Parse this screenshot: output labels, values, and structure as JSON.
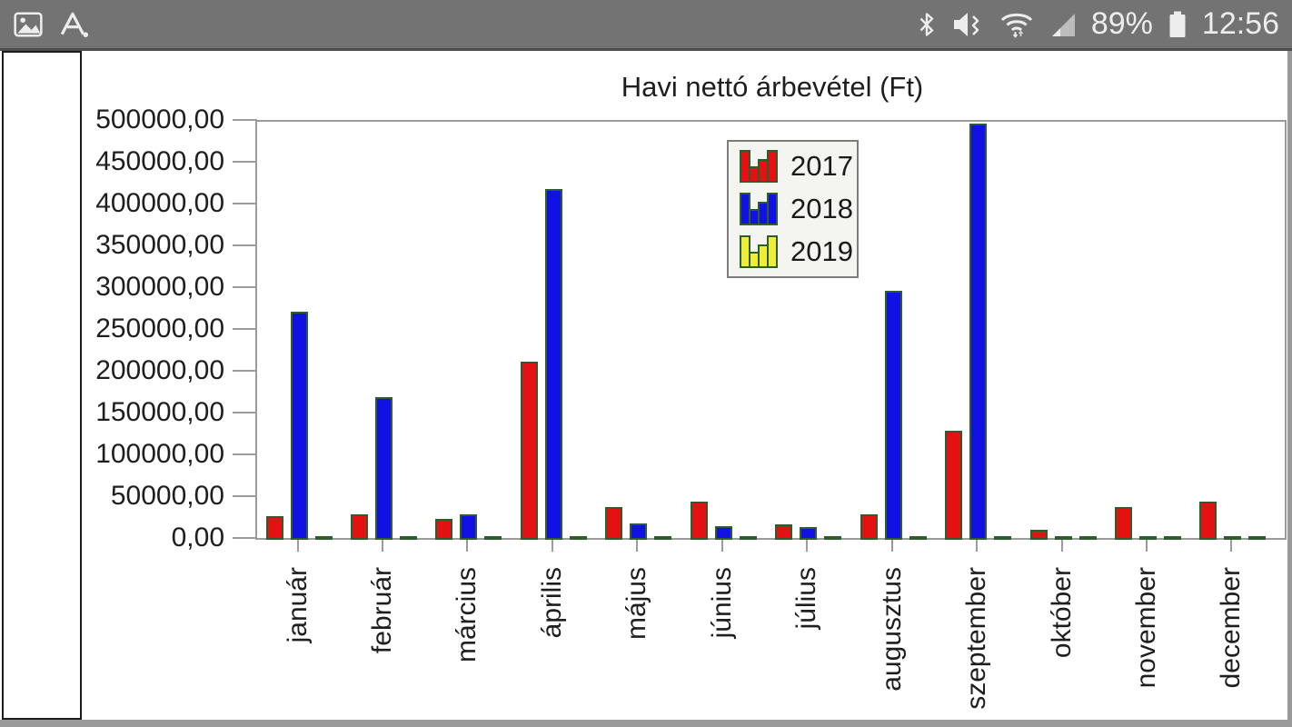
{
  "status_bar": {
    "time": "12:56",
    "battery_percent": "89%",
    "icons": {
      "left": [
        "gallery-icon",
        "a-badge-icon"
      ],
      "right": [
        "bluetooth-icon",
        "mute-vibrate-icon",
        "wifi-icon",
        "cell-signal-icon",
        "battery-icon"
      ]
    }
  },
  "side_panel": {
    "content": ""
  },
  "chart_data": {
    "type": "bar",
    "title": "Havi nettó árbevétel (Ft)",
    "categories": [
      "január",
      "február",
      "március",
      "április",
      "május",
      "június",
      "július",
      "augusztus",
      "szeptember",
      "október",
      "november",
      "december"
    ],
    "series": [
      {
        "name": "2017",
        "color": "#e31111",
        "values": [
          28000,
          30000,
          25000,
          213000,
          39000,
          46000,
          18000,
          30000,
          130000,
          12000,
          39000,
          46000
        ]
      },
      {
        "name": "2018",
        "color": "#1111e3",
        "values": [
          273000,
          171000,
          30000,
          420000,
          20000,
          16000,
          15000,
          298000,
          498000,
          2000,
          2000,
          2000
        ]
      },
      {
        "name": "2019",
        "color": "#eded3a",
        "values": [
          2000,
          2000,
          2000,
          2000,
          2000,
          2000,
          2000,
          2000,
          2000,
          2000,
          2000,
          2000
        ]
      }
    ],
    "xlabel": "",
    "ylabel": "",
    "ylim": [
      0,
      500000
    ],
    "y_tick_step": 50000,
    "y_tick_labels": [
      "0,00",
      "50000,00",
      "100000,00",
      "150000,00",
      "200000,00",
      "250000,00",
      "300000,00",
      "350000,00",
      "400000,00",
      "450000,00",
      "500000,00"
    ],
    "grid": false,
    "legend_position": "top-center",
    "bar_border_color": "#2d5c2d",
    "axis_color": "#9b9b9b"
  }
}
